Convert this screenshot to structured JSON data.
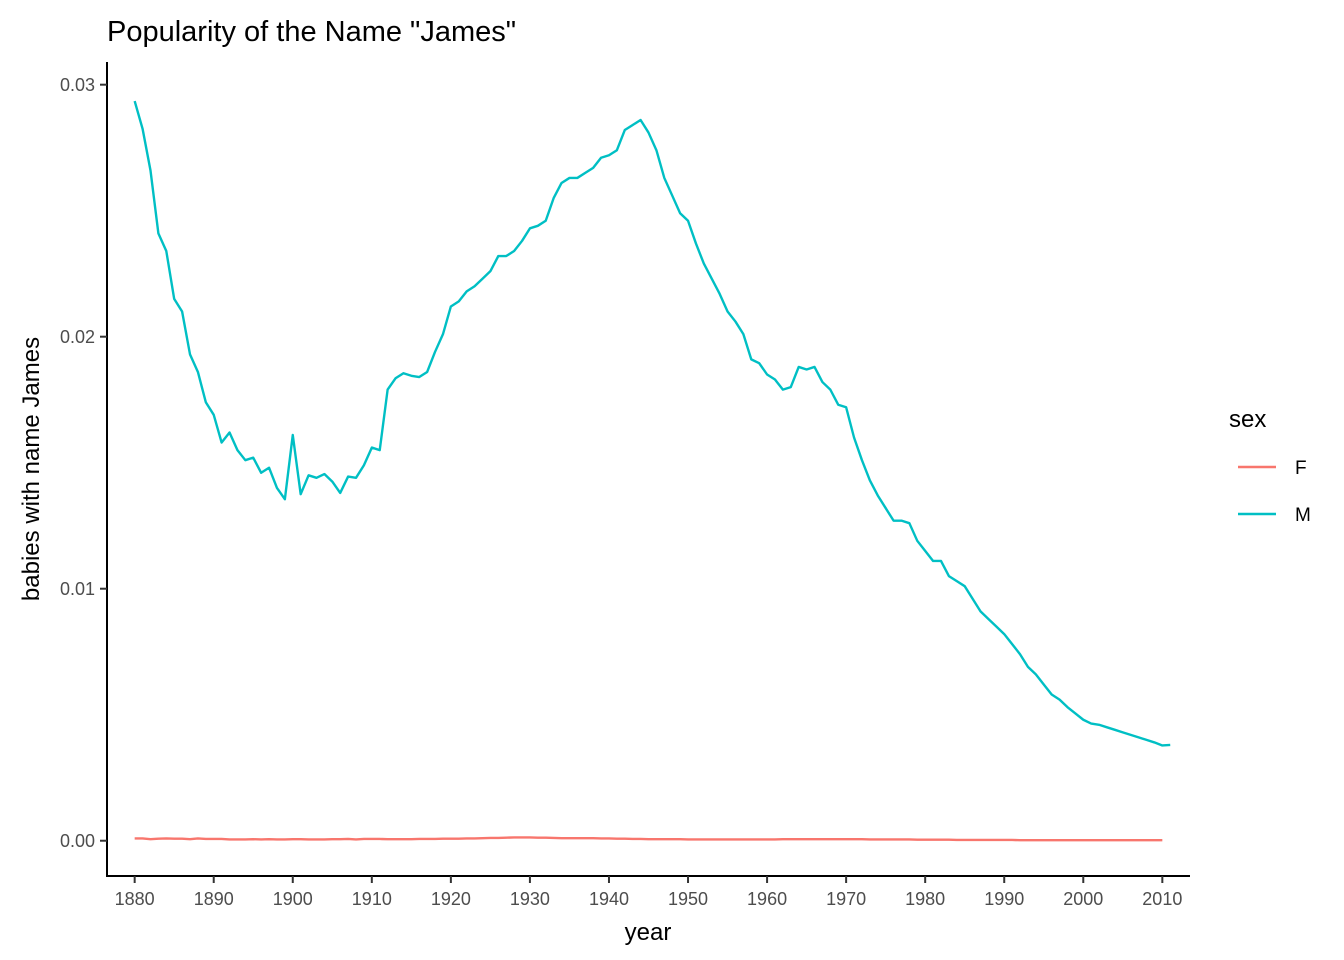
{
  "chart_data": {
    "type": "line",
    "title": "Popularity of the Name \"James\"",
    "xlabel": "year",
    "ylabel": "babies with name James",
    "xlim": [
      1876.5,
      2013.5
    ],
    "ylim": [
      -0.0014,
      0.0309
    ],
    "x_ticks": [
      1880,
      1890,
      1900,
      1910,
      1920,
      1930,
      1940,
      1950,
      1960,
      1970,
      1980,
      1990,
      2000,
      2010
    ],
    "y_ticks": [
      0.0,
      0.01,
      0.02,
      0.03
    ],
    "y_tick_labels": [
      "0.00",
      "0.01",
      "0.02",
      "0.03"
    ],
    "grid": false,
    "legend": {
      "title": "sex",
      "placement": "right"
    },
    "x_start": 1880,
    "series": [
      {
        "name": "F",
        "color": "#F8766D",
        "values": [
          9e-05,
          9e-05,
          6e-05,
          8e-05,
          9e-05,
          8e-05,
          8e-05,
          6e-05,
          9e-05,
          7e-05,
          7e-05,
          7e-05,
          5e-05,
          5e-05,
          5e-05,
          6e-05,
          5e-05,
          6e-05,
          5e-05,
          5e-05,
          6e-05,
          6e-05,
          5e-05,
          5e-05,
          5e-05,
          6e-05,
          6e-05,
          7e-05,
          5e-05,
          7e-05,
          7e-05,
          7e-05,
          6e-05,
          6e-05,
          6e-05,
          6e-05,
          7e-05,
          7e-05,
          7e-05,
          8e-05,
          8e-05,
          8e-05,
          9e-05,
          9e-05,
          0.0001,
          0.00011,
          0.00011,
          0.00012,
          0.00013,
          0.00013,
          0.00013,
          0.00012,
          0.00012,
          0.00011,
          0.0001,
          0.0001,
          0.0001,
          0.0001,
          0.0001,
          9e-05,
          9e-05,
          8e-05,
          8e-05,
          7e-05,
          7e-05,
          6e-05,
          6e-05,
          6e-05,
          6e-05,
          6e-05,
          5e-05,
          5e-05,
          5e-05,
          5e-05,
          5e-05,
          5e-05,
          5e-05,
          5e-05,
          5e-05,
          5e-05,
          5e-05,
          5e-05,
          6e-05,
          6e-05,
          6e-05,
          6e-05,
          6e-05,
          6e-05,
          6e-05,
          6e-05,
          6e-05,
          6e-05,
          6e-05,
          5e-05,
          5e-05,
          5e-05,
          5e-05,
          5e-05,
          5e-05,
          4e-05,
          4e-05,
          4e-05,
          4e-05,
          4e-05,
          3e-05,
          3e-05,
          3e-05,
          3e-05,
          3e-05,
          3e-05,
          3e-05,
          3e-05,
          2e-05,
          2e-05,
          2e-05,
          2e-05,
          2e-05,
          2e-05,
          2e-05,
          2e-05,
          2e-05,
          2e-05,
          2e-05,
          2e-05,
          2e-05,
          2e-05,
          2e-05,
          2e-05,
          2e-05,
          2e-05,
          2e-05
        ]
      },
      {
        "name": "M",
        "color": "#00BFC4",
        "values": [
          0.02935,
          0.02825,
          0.0266,
          0.0241,
          0.0234,
          0.0215,
          0.021,
          0.0193,
          0.0186,
          0.0174,
          0.0169,
          0.0158,
          0.0162,
          0.0155,
          0.0151,
          0.0152,
          0.0146,
          0.0148,
          0.014,
          0.01355,
          0.0161,
          0.01375,
          0.0145,
          0.0144,
          0.01455,
          0.01425,
          0.0138,
          0.01445,
          0.0144,
          0.0149,
          0.0156,
          0.0155,
          0.0179,
          0.01835,
          0.01855,
          0.01845,
          0.0184,
          0.0186,
          0.0194,
          0.0201,
          0.0212,
          0.0214,
          0.0218,
          0.022,
          0.0223,
          0.0226,
          0.0232,
          0.0232,
          0.0234,
          0.0238,
          0.0243,
          0.0244,
          0.0246,
          0.0255,
          0.0261,
          0.0263,
          0.0263,
          0.0265,
          0.0267,
          0.0271,
          0.0272,
          0.0274,
          0.0282,
          0.0284,
          0.0286,
          0.0281,
          0.0274,
          0.0263,
          0.0256,
          0.0249,
          0.0246,
          0.0237,
          0.0229,
          0.0223,
          0.0217,
          0.021,
          0.0206,
          0.0201,
          0.0191,
          0.01895,
          0.0185,
          0.0183,
          0.0179,
          0.018,
          0.0188,
          0.0187,
          0.0188,
          0.0182,
          0.0179,
          0.0173,
          0.0172,
          0.016,
          0.0151,
          0.0143,
          0.0137,
          0.0132,
          0.0127,
          0.0127,
          0.0126,
          0.0119,
          0.0115,
          0.0111,
          0.0111,
          0.0105,
          0.0103,
          0.0101,
          0.0096,
          0.0091,
          0.0088,
          0.0085,
          0.0082,
          0.0078,
          0.0074,
          0.0069,
          0.0066,
          0.0062,
          0.0058,
          0.0056,
          0.0053,
          0.00505,
          0.0048,
          0.00465,
          0.0046,
          0.0045,
          0.0044,
          0.0043,
          0.0042,
          0.0041,
          0.004,
          0.0039,
          0.00378,
          0.0038
        ]
      }
    ]
  }
}
